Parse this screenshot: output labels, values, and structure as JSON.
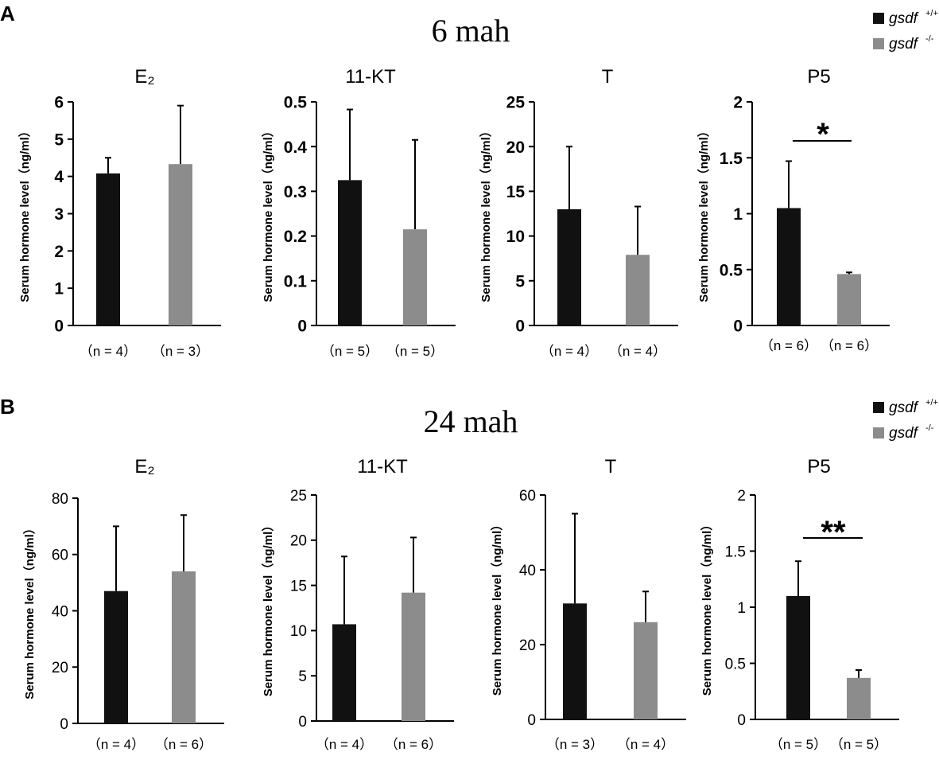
{
  "colors": {
    "wt": "#111111",
    "ko": "#8c8c8c",
    "axis": "#000000"
  },
  "y_axis_label": "Serum hormone level（ng/ml）",
  "legend": {
    "wt_label": "gsdf",
    "wt_sup": "+/+",
    "ko_label": "gsdf",
    "ko_sup": "-/-"
  },
  "panels": [
    {
      "letter": "A",
      "title_num": "6",
      "title_unit": "mah",
      "charts": [
        {
          "title": "E₂",
          "ylim": [
            0,
            6
          ],
          "ticks": [
            "0",
            "1",
            "2",
            "3",
            "4",
            "5",
            "6"
          ],
          "tick_bold": true,
          "values": [
            4.08,
            4.33
          ],
          "errors": [
            0.42,
            1.57
          ],
          "n": [
            "（n = 4）",
            "（n = 3）"
          ],
          "sig": ""
        },
        {
          "title": "11-KT",
          "ylim": [
            0,
            0.5
          ],
          "ticks": [
            "0",
            "0.1",
            "0.2",
            "0.3",
            "0.4",
            "0.5"
          ],
          "tick_bold": true,
          "values": [
            0.325,
            0.215
          ],
          "errors": [
            0.158,
            0.2
          ],
          "n": [
            "（n = 5）",
            "（n = 5）"
          ],
          "sig": ""
        },
        {
          "title": "T",
          "ylim": [
            0,
            25
          ],
          "ticks": [
            "0",
            "5",
            "10",
            "15",
            "20",
            "25"
          ],
          "tick_bold": true,
          "values": [
            13.0,
            7.9
          ],
          "errors": [
            7.0,
            5.4
          ],
          "n": [
            "（n = 4）",
            "（n = 4）"
          ],
          "sig": ""
        },
        {
          "title": "P5",
          "ylim": [
            0,
            2
          ],
          "ticks": [
            "0",
            "0.5",
            "1",
            "1.5",
            "2"
          ],
          "tick_bold": true,
          "values": [
            1.05,
            0.46
          ],
          "errors": [
            0.42,
            0.015
          ],
          "n": [
            "（n = 6）",
            "（n = 6）"
          ],
          "sig": "*"
        }
      ]
    },
    {
      "letter": "B",
      "title_num": "24",
      "title_unit": "mah",
      "charts": [
        {
          "title": "E₂",
          "ylim": [
            0,
            80
          ],
          "ticks": [
            "0",
            "20",
            "40",
            "60",
            "80"
          ],
          "tick_bold": false,
          "values": [
            47.0,
            54.0
          ],
          "errors": [
            23.0,
            20.0
          ],
          "n": [
            "（n = 4）",
            "（n = 6）"
          ],
          "sig": ""
        },
        {
          "title": "11-KT",
          "ylim": [
            0,
            25
          ],
          "ticks": [
            "0",
            "5",
            "10",
            "15",
            "20",
            "25"
          ],
          "tick_bold": false,
          "values": [
            10.7,
            14.2
          ],
          "errors": [
            7.5,
            6.1
          ],
          "n": [
            "（n = 4）",
            "（n = 6）"
          ],
          "sig": ""
        },
        {
          "title": "T",
          "ylim": [
            0,
            60
          ],
          "ticks": [
            "0",
            "20",
            "40",
            "60"
          ],
          "tick_bold": false,
          "values": [
            31.0,
            26.0
          ],
          "errors": [
            24.0,
            8.2
          ],
          "n": [
            "（n = 3）",
            "（n = 4）"
          ],
          "sig": ""
        },
        {
          "title": "P5",
          "ylim": [
            0,
            2
          ],
          "ticks": [
            "0",
            "0.5",
            "1",
            "1.5",
            "2"
          ],
          "tick_bold": false,
          "values": [
            1.1,
            0.37
          ],
          "errors": [
            0.31,
            0.07
          ],
          "n": [
            "（n = 5）",
            "（n = 5）"
          ],
          "sig": "**"
        }
      ]
    }
  ],
  "chart_data": [
    {
      "type": "bar",
      "title": "E₂ (6 mah)",
      "categories": [
        "gsdf +/+",
        "gsdf -/-"
      ],
      "ylabel": "Serum hormone level（ng/ml）",
      "ylim": [
        0,
        6
      ],
      "series": [
        {
          "name": "mean",
          "values": [
            4.08,
            4.33
          ]
        },
        {
          "name": "error",
          "values": [
            0.42,
            1.57
          ]
        }
      ]
    },
    {
      "type": "bar",
      "title": "11-KT (6 mah)",
      "categories": [
        "gsdf +/+",
        "gsdf -/-"
      ],
      "ylabel": "Serum hormone level（ng/ml）",
      "ylim": [
        0,
        0.5
      ],
      "series": [
        {
          "name": "mean",
          "values": [
            0.325,
            0.215
          ]
        },
        {
          "name": "error",
          "values": [
            0.158,
            0.2
          ]
        }
      ]
    },
    {
      "type": "bar",
      "title": "T (6 mah)",
      "categories": [
        "gsdf +/+",
        "gsdf -/-"
      ],
      "ylabel": "Serum hormone level（ng/ml）",
      "ylim": [
        0,
        25
      ],
      "series": [
        {
          "name": "mean",
          "values": [
            13.0,
            7.9
          ]
        },
        {
          "name": "error",
          "values": [
            7.0,
            5.4
          ]
        }
      ]
    },
    {
      "type": "bar",
      "title": "P5 (6 mah)",
      "categories": [
        "gsdf +/+",
        "gsdf -/-"
      ],
      "ylabel": "Serum hormone level（ng/ml）",
      "ylim": [
        0,
        2
      ],
      "series": [
        {
          "name": "mean",
          "values": [
            1.05,
            0.46
          ]
        },
        {
          "name": "error",
          "values": [
            0.42,
            0.015
          ]
        }
      ]
    },
    {
      "type": "bar",
      "title": "E₂ (24 mah)",
      "categories": [
        "gsdf +/+",
        "gsdf -/-"
      ],
      "ylabel": "Serum hormone level（ng/ml）",
      "ylim": [
        0,
        80
      ],
      "series": [
        {
          "name": "mean",
          "values": [
            47.0,
            54.0
          ]
        },
        {
          "name": "error",
          "values": [
            23.0,
            20.0
          ]
        }
      ]
    },
    {
      "type": "bar",
      "title": "11-KT (24 mah)",
      "categories": [
        "gsdf +/+",
        "gsdf -/-"
      ],
      "ylabel": "Serum hormone level（ng/ml）",
      "ylim": [
        0,
        25
      ],
      "series": [
        {
          "name": "mean",
          "values": [
            10.7,
            14.2
          ]
        },
        {
          "name": "error",
          "values": [
            7.5,
            6.1
          ]
        }
      ]
    },
    {
      "type": "bar",
      "title": "T (24 mah)",
      "categories": [
        "gsdf +/+",
        "gsdf -/-"
      ],
      "ylabel": "Serum hormone level（ng/ml）",
      "ylim": [
        0,
        60
      ],
      "series": [
        {
          "name": "mean",
          "values": [
            31.0,
            26.0
          ]
        },
        {
          "name": "error",
          "values": [
            24.0,
            8.2
          ]
        }
      ]
    },
    {
      "type": "bar",
      "title": "P5 (24 mah)",
      "categories": [
        "gsdf +/+",
        "gsdf -/-"
      ],
      "ylabel": "Serum hormone level（ng/ml）",
      "ylim": [
        0,
        2
      ],
      "series": [
        {
          "name": "mean",
          "values": [
            1.1,
            0.37
          ]
        },
        {
          "name": "error",
          "values": [
            0.31,
            0.07
          ]
        }
      ]
    }
  ]
}
